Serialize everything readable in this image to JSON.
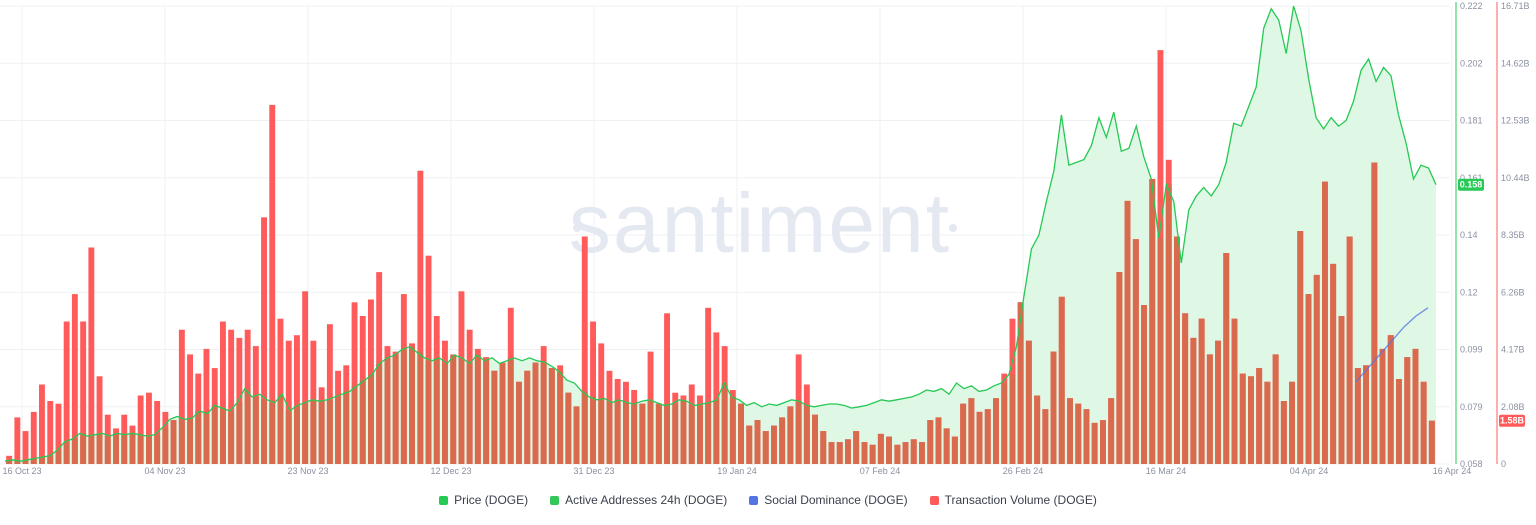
{
  "watermark": "santiment",
  "colors": {
    "price": "#26c953",
    "price_fill": "#dff7e5",
    "active_addresses": "#34c759",
    "social_dominance": "#5275e3",
    "transaction_volume": "#ff5b5b",
    "transaction_volume_overlap": "#d96a4e",
    "grid": "#eef0f4",
    "axis_text": "#8a91a0",
    "price_axis": "#26c953",
    "volume_axis": "#ff5b5b"
  },
  "price_badge": "0.158",
  "volume_badge": "1.58B",
  "legend": [
    {
      "label": "Price (DOGE)",
      "color": "#26c953"
    },
    {
      "label": "Active Addresses 24h (DOGE)",
      "color": "#34c759"
    },
    {
      "label": "Social Dominance (DOGE)",
      "color": "#5275e3"
    },
    {
      "label": "Transaction Volume (DOGE)",
      "color": "#ff5b5b"
    }
  ],
  "chart_data": {
    "type": "bar",
    "x_ticks": [
      "16 Oct 23",
      "04 Nov 23",
      "23 Nov 23",
      "12 Dec 23",
      "31 Dec 23",
      "19 Jan 24",
      "07 Feb 24",
      "26 Feb 24",
      "16 Mar 24",
      "04 Apr 24",
      "16 Apr 24"
    ],
    "price_axis": {
      "ticks": [
        "0.058",
        "0.079",
        "0.099",
        "0.12",
        "0.14",
        "0.161",
        "0.181",
        "0.202",
        "0.222"
      ],
      "ylim": [
        0.058,
        0.222
      ]
    },
    "volume_axis": {
      "ticks": [
        "0",
        "2.08B",
        "4.17B",
        "6.26B",
        "8.35B",
        "10.44B",
        "12.53B",
        "14.62B",
        "16.71B"
      ],
      "ylim": [
        0,
        16.71
      ]
    },
    "series": [
      {
        "name": "Transaction Volume (DOGE)",
        "type": "bar",
        "unit": "B",
        "values": [
          0.3,
          1.7,
          1.2,
          1.9,
          2.9,
          2.3,
          2.2,
          5.2,
          6.2,
          5.2,
          7.9,
          3.2,
          1.8,
          1.3,
          1.8,
          1.4,
          2.5,
          2.6,
          2.3,
          1.9,
          1.6,
          4.9,
          4.0,
          3.3,
          4.2,
          3.5,
          5.2,
          4.9,
          4.6,
          4.9,
          4.3,
          9.0,
          13.1,
          5.3,
          4.5,
          4.7,
          6.3,
          4.5,
          2.8,
          5.1,
          3.4,
          3.6,
          5.9,
          5.4,
          6.0,
          7.0,
          4.3,
          4.1,
          6.2,
          4.4,
          10.7,
          7.6,
          5.4,
          4.5,
          4.0,
          6.3,
          4.9,
          4.2,
          3.9,
          3.4,
          3.7,
          5.7,
          3.0,
          3.4,
          3.7,
          4.3,
          3.5,
          3.6,
          2.6,
          2.1,
          8.3,
          5.2,
          4.4,
          3.4,
          3.1,
          3.0,
          2.7,
          2.2,
          4.1,
          2.2,
          5.5,
          2.6,
          2.5,
          2.9,
          2.5,
          5.7,
          4.8,
          4.3,
          2.7,
          2.2,
          1.4,
          1.6,
          1.2,
          1.4,
          1.7,
          2.1,
          4.0,
          2.9,
          1.8,
          1.2,
          0.8,
          0.8,
          0.9,
          1.2,
          0.8,
          0.7,
          1.1,
          1.0,
          0.7,
          0.8,
          0.9,
          0.8,
          1.6,
          1.7,
          1.3,
          1.0,
          2.2,
          2.4,
          1.9,
          2.0,
          2.4,
          3.3,
          5.3,
          5.9,
          4.5,
          2.5,
          2.0,
          4.1,
          6.1,
          2.4,
          2.2,
          2.0,
          1.5,
          1.6,
          2.4,
          7.0,
          9.6,
          8.2,
          5.8,
          10.4,
          15.1,
          11.1,
          8.3,
          5.5,
          4.6,
          5.3,
          4.0,
          4.5,
          7.7,
          5.3,
          3.3,
          3.2,
          3.5,
          3.0,
          4.0,
          2.3,
          3.0,
          8.5,
          6.2,
          6.9,
          10.3,
          7.3,
          5.4,
          8.3,
          3.5,
          3.6,
          11.0,
          4.2,
          4.7,
          3.1,
          3.9,
          4.2,
          3.0,
          1.58
        ]
      },
      {
        "name": "Price (DOGE)",
        "type": "area",
        "values": [
          0.059,
          0.0595,
          0.059,
          0.0595,
          0.06,
          0.0605,
          0.061,
          0.063,
          0.066,
          0.067,
          0.069,
          0.068,
          0.0685,
          0.069,
          0.068,
          0.069,
          0.0685,
          0.069,
          0.0685,
          0.068,
          0.0685,
          0.071,
          0.074,
          0.075,
          0.074,
          0.0745,
          0.077,
          0.076,
          0.079,
          0.078,
          0.077,
          0.08,
          0.085,
          0.082,
          0.083,
          0.081,
          0.08,
          0.083,
          0.077,
          0.079,
          0.08,
          0.081,
          0.0805,
          0.081,
          0.082,
          0.083,
          0.084,
          0.086,
          0.088,
          0.09,
          0.094,
          0.096,
          0.097,
          0.099,
          0.1,
          0.098,
          0.096,
          0.095,
          0.096,
          0.094,
          0.097,
          0.096,
          0.094,
          0.097,
          0.095,
          0.096,
          0.094,
          0.095,
          0.096,
          0.095,
          0.096,
          0.095,
          0.0945,
          0.093,
          0.091,
          0.088,
          0.087,
          0.084,
          0.082,
          0.081,
          0.0815,
          0.08,
          0.081,
          0.08,
          0.0795,
          0.0805,
          0.081,
          0.08,
          0.079,
          0.0795,
          0.081,
          0.0805,
          0.079,
          0.0795,
          0.08,
          0.081,
          0.087,
          0.082,
          0.081,
          0.079,
          0.08,
          0.0785,
          0.0795,
          0.079,
          0.08,
          0.081,
          0.0805,
          0.079,
          0.0785,
          0.079,
          0.0795,
          0.0795,
          0.079,
          0.078,
          0.0785,
          0.079,
          0.08,
          0.081,
          0.0805,
          0.081,
          0.0815,
          0.082,
          0.083,
          0.0845,
          0.084,
          0.085,
          0.083,
          0.087,
          0.085,
          0.086,
          0.084,
          0.0845,
          0.086,
          0.087,
          0.09,
          0.1,
          0.118,
          0.135,
          0.14,
          0.152,
          0.163,
          0.183,
          0.165,
          0.166,
          0.167,
          0.172,
          0.182,
          0.175,
          0.184,
          0.17,
          0.171,
          0.179,
          0.168,
          0.16,
          0.139,
          0.158,
          0.152,
          0.13,
          0.149,
          0.154,
          0.157,
          0.154,
          0.158,
          0.166,
          0.18,
          0.179,
          0.186,
          0.193,
          0.214,
          0.221,
          0.217,
          0.205,
          0.222,
          0.213,
          0.196,
          0.182,
          0.178,
          0.182,
          0.179,
          0.181,
          0.188,
          0.199,
          0.203,
          0.195,
          0.2,
          0.197,
          0.183,
          0.173,
          0.16,
          0.165,
          0.164,
          0.158
        ]
      },
      {
        "name": "Social Dominance (DOGE)",
        "type": "line",
        "unit": "B",
        "values": [
          3.0,
          3.5,
          4.0,
          4.5,
          5.0,
          5.4,
          5.7
        ]
      }
    ]
  }
}
